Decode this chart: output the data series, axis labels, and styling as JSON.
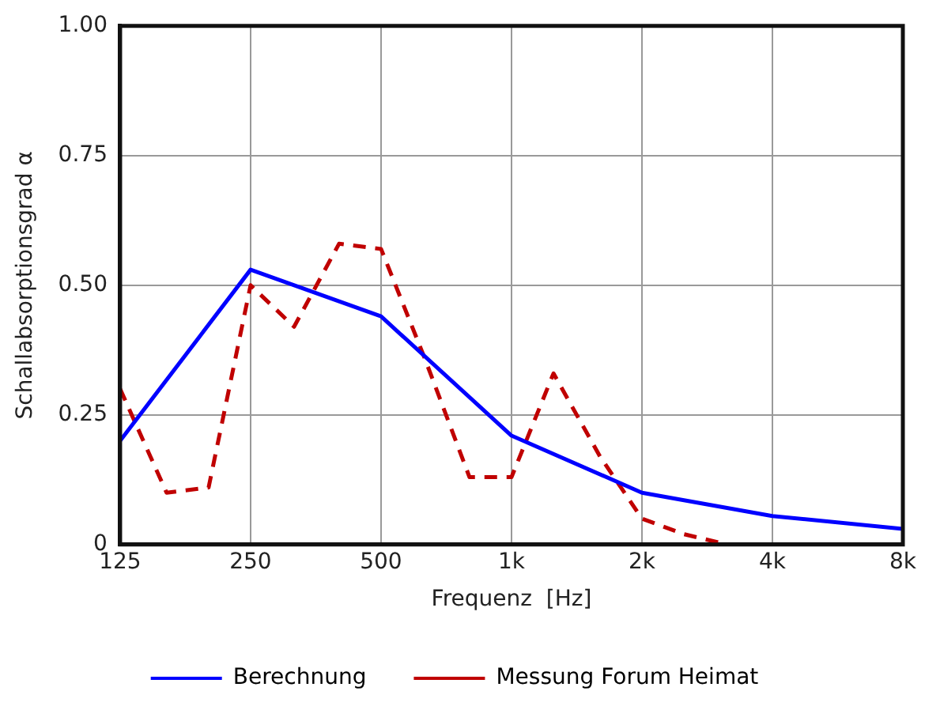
{
  "chart_data": {
    "type": "line",
    "xlabel": "Frequenz  [Hz]",
    "ylabel": "Schallabsorptionsgrad α",
    "log": "x",
    "xlim": [
      125,
      8000
    ],
    "xticks": [
      125,
      250,
      500,
      {
        "value": 1000,
        "label": "1k"
      },
      {
        "value": 2000,
        "label": "2k"
      },
      {
        "value": 4000,
        "label": "4k"
      },
      {
        "value": 8000,
        "label": "8k"
      }
    ],
    "ylim": [
      0,
      1
    ],
    "yticks": [
      {
        "value": 0,
        "label": "0"
      },
      {
        "value": 0.25,
        "label": "0.25"
      },
      {
        "value": 0.5,
        "label": "0.50"
      },
      {
        "value": 0.75,
        "label": "0.75"
      },
      {
        "value": 1,
        "label": "1.00"
      }
    ],
    "grid": true,
    "legend": "bottom",
    "marker": "none",
    "series": [
      {
        "name": "Berechnung",
        "color": "#0000ff",
        "line_style": "solid",
        "x": [
          125,
          250,
          500,
          1000,
          2000,
          4000,
          8000
        ],
        "values": [
          0.2,
          0.53,
          0.44,
          0.21,
          0.1,
          0.055,
          0.03
        ]
      },
      {
        "name": "Messung Forum Heimat",
        "color": "#c00000",
        "line_style": "dashed",
        "x": [
          125,
          160,
          200,
          250,
          315,
          400,
          500,
          630,
          800,
          1000,
          1250,
          1600,
          2000,
          2500,
          3150
        ],
        "values": [
          0.3,
          0.1,
          0.11,
          0.5,
          0.42,
          0.58,
          0.57,
          0.36,
          0.13,
          0.13,
          0.33,
          0.17,
          0.05,
          0.02,
          0
        ]
      }
    ]
  }
}
